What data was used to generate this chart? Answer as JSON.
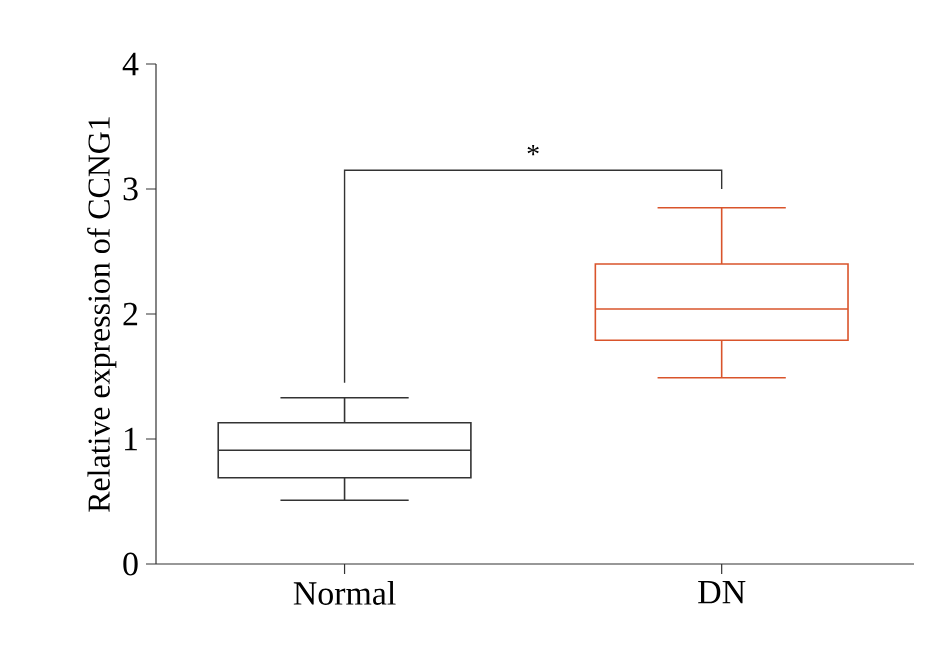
{
  "chart_data": {
    "type": "box",
    "ylabel": "Relative expression of CCNG1",
    "categories": [
      "Normal",
      "DN"
    ],
    "boxes": [
      {
        "low": 0.51,
        "q1": 0.69,
        "median": 0.91,
        "q3": 1.13,
        "high": 1.33
      },
      {
        "low": 1.49,
        "q1": 1.79,
        "median": 2.04,
        "q3": 2.4,
        "high": 2.85
      }
    ],
    "colors": [
      "#333333",
      "#d9542b"
    ],
    "ylim": [
      0,
      4
    ],
    "yticks": [
      0,
      1,
      2,
      3,
      4
    ],
    "annotations": [
      "*"
    ]
  }
}
